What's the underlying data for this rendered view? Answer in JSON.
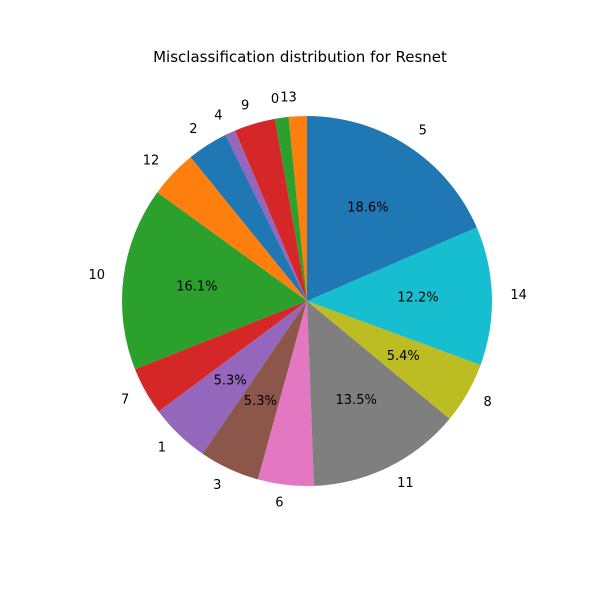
{
  "chart_data": {
    "type": "pie",
    "title": "Misclassification distribution for Resnet",
    "start_angle_deg": 90,
    "direction": "counterclockwise",
    "pct_label_threshold": 5,
    "slices": [
      {
        "label": "13",
        "value": 1.6,
        "color": "#ff7f0e"
      },
      {
        "label": "0",
        "value": 1.2,
        "color": "#2ca02c"
      },
      {
        "label": "9",
        "value": 3.6,
        "color": "#d62728"
      },
      {
        "label": "4",
        "value": 0.9,
        "color": "#9467bd"
      },
      {
        "label": "2",
        "value": 3.6,
        "color": "#1f77b4"
      },
      {
        "label": "12",
        "value": 4.2,
        "color": "#ff7f0e"
      },
      {
        "label": "10",
        "value": 16.1,
        "color": "#2ca02c"
      },
      {
        "label": "7",
        "value": 4.2,
        "color": "#d62728"
      },
      {
        "label": "1",
        "value": 5.3,
        "color": "#9467bd"
      },
      {
        "label": "3",
        "value": 5.3,
        "color": "#8c564b"
      },
      {
        "label": "6",
        "value": 4.9,
        "color": "#e377c2"
      },
      {
        "label": "11",
        "value": 13.5,
        "color": "#7f7f7f"
      },
      {
        "label": "8",
        "value": 5.4,
        "color": "#bcbd22"
      },
      {
        "label": "14",
        "value": 12.2,
        "color": "#17becf"
      },
      {
        "label": "5",
        "value": 18.6,
        "color": "#1f77b4"
      }
    ]
  }
}
